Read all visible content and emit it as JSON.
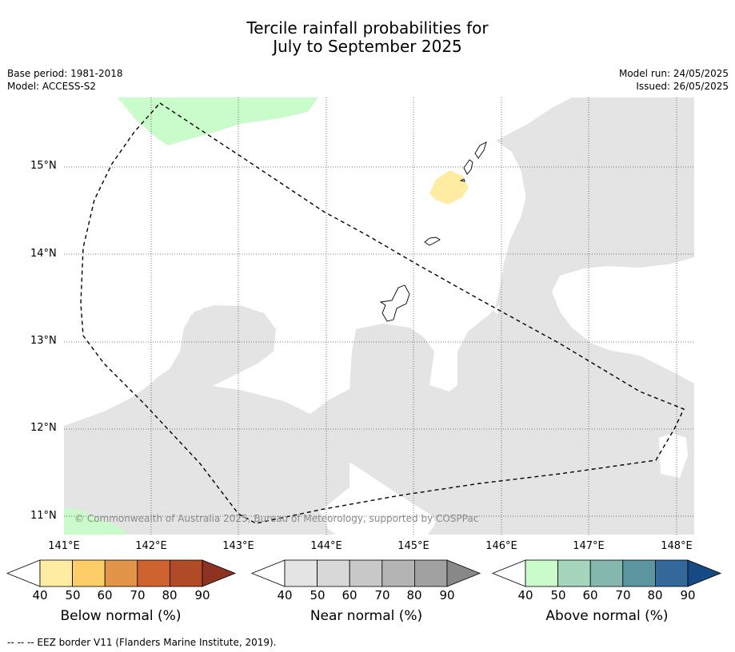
{
  "title": {
    "line1": "Tercile rainfall probabilities for",
    "line2": "July to September 2025"
  },
  "meta": {
    "base_period": "Base period: 1981-2018",
    "model": "Model: ACCESS-S2",
    "model_run": "Model run: 24/05/2025",
    "issued": "Issued: 26/05/2025"
  },
  "map": {
    "lat_labels": [
      "15°N",
      "14°N",
      "13°N",
      "12°N",
      "11°N"
    ],
    "lon_labels": [
      "141°E",
      "142°E",
      "143°E",
      "144°E",
      "145°E",
      "146°E",
      "147°E",
      "148°E"
    ],
    "copyright": "© Commonwealth of Australia 2025, Bureau of Meteorology, supported by COSPPac",
    "colors": {
      "near_normal_40": "#e4e4e4",
      "below_normal_40": "#fdeca2",
      "above_normal_40": "#c9fbcb",
      "eez_border": "#000000"
    }
  },
  "colorbars": [
    {
      "label": "Below normal (%)",
      "ticks": [
        "40",
        "50",
        "60",
        "70",
        "80",
        "90"
      ],
      "colors": [
        "#fdeca2",
        "#fdcd68",
        "#e29548",
        "#cf6330",
        "#b14a26",
        "#8e3221"
      ]
    },
    {
      "label": "Near normal (%)",
      "ticks": [
        "40",
        "50",
        "60",
        "70",
        "80",
        "90"
      ],
      "colors": [
        "#e4e4e4",
        "#d8d8d8",
        "#c8c8c8",
        "#b4b4b4",
        "#a1a1a1",
        "#888888"
      ]
    },
    {
      "label": "Above normal (%)",
      "ticks": [
        "40",
        "50",
        "60",
        "70",
        "80",
        "90"
      ],
      "colors": [
        "#c9fbcb",
        "#a5d6bd",
        "#84b7ad",
        "#5b95a0",
        "#32689a",
        "#164a84"
      ]
    }
  ],
  "footer": "--  --  -- EEZ border V11 (Flanders Marine Institute, 2019)."
}
